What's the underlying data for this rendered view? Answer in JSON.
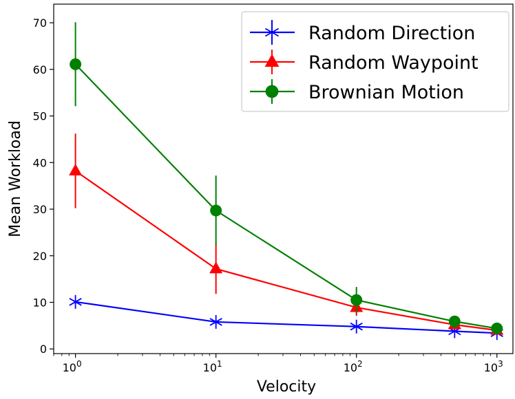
{
  "chart_data": {
    "type": "line",
    "title": "",
    "xlabel": "Velocity",
    "ylabel": "Mean Workload",
    "xscale": "log",
    "xlim": [
      0.7,
      1300
    ],
    "ylim": [
      -1,
      74
    ],
    "x_ticks": [
      {
        "value": 1,
        "base": "10",
        "exp": "0"
      },
      {
        "value": 10,
        "base": "10",
        "exp": "1"
      },
      {
        "value": 100,
        "base": "10",
        "exp": "2"
      },
      {
        "value": 1000,
        "base": "10",
        "exp": "3"
      }
    ],
    "y_ticks": [
      0,
      10,
      20,
      30,
      40,
      50,
      60,
      70
    ],
    "x": [
      1,
      10,
      100,
      500,
      1000
    ],
    "series": [
      {
        "name": "Random Direction",
        "color": "#0000ff",
        "marker": "asterisk",
        "values": [
          10.1,
          5.8,
          4.8,
          3.8,
          3.4
        ],
        "err": [
          0.4,
          0.4,
          0.3,
          0.2,
          0.2
        ]
      },
      {
        "name": "Random Waypoint",
        "color": "#ff0000",
        "marker": "triangle",
        "values": [
          38.2,
          17.2,
          8.9,
          5.2,
          4.0
        ],
        "err": [
          8.0,
          5.4,
          1.8,
          0.5,
          0.4
        ]
      },
      {
        "name": "Brownian Motion",
        "color": "#008000",
        "marker": "circle",
        "values": [
          61.1,
          29.7,
          10.5,
          5.9,
          4.4
        ],
        "err": [
          9.0,
          7.5,
          2.8,
          0.6,
          0.4
        ]
      }
    ],
    "legend_position": "top-right",
    "grid": false
  }
}
